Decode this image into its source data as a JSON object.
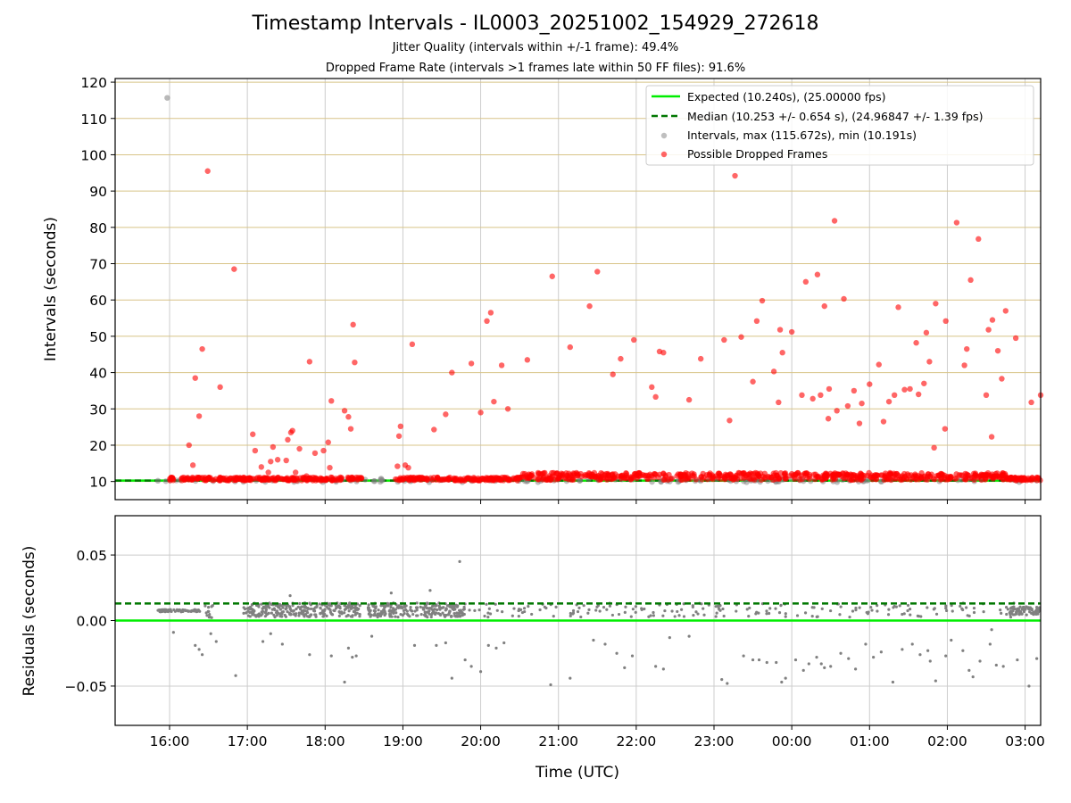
{
  "chart_data": {
    "title": "Timestamp Intervals - IL0003_20251002_154929_272618",
    "subtitles": [
      "Jitter Quality (intervals within +/-1 frame): 49.4%",
      "Dropped Frame Rate (intervals >1 frames late within 50 FF files): 91.6%"
    ],
    "xlabel": "Time (UTC)",
    "x_tick_labels": [
      "16:00",
      "17:00",
      "18:00",
      "19:00",
      "20:00",
      "21:00",
      "22:00",
      "23:00",
      "00:00",
      "01:00",
      "02:00",
      "03:00"
    ],
    "xlim_hours": [
      15.3,
      27.2
    ],
    "colors": {
      "expected": "#00ee00",
      "median": "#007700",
      "intervals": "#808080",
      "dropped": "#ff0000",
      "grid_h_top": "#d8c488",
      "grid": "#cccccc"
    },
    "panels": [
      {
        "id": "intervals",
        "type": "scatter",
        "ylabel": "Intervals (seconds)",
        "ylim": [
          5,
          121
        ],
        "yticks": [
          10,
          20,
          30,
          40,
          50,
          60,
          70,
          80,
          90,
          100,
          110,
          120
        ],
        "ytick_labels": [
          "10",
          "20",
          "30",
          "40",
          "50",
          "60",
          "70",
          "80",
          "90",
          "100",
          "110",
          "120"
        ],
        "expected_value": 10.24,
        "median_value": 10.253,
        "legend": {
          "position": "top-right",
          "entries": [
            "Expected (10.240s), (25.00000 fps)",
            "Median (10.253 +/- 0.654 s), (24.96847 +/- 1.39 fps)",
            "Intervals, max (115.672s), min (10.191s)",
            "Possible Dropped Frames"
          ]
        },
        "baseline_band": {
          "x_start": 15.85,
          "x_end": 27.2,
          "y": 10.25,
          "spread": 0.9
        },
        "gray_points": [
          [
            15.85,
            10.2
          ],
          [
            15.97,
            115.67
          ],
          [
            16.24,
            10.9
          ],
          [
            18.72,
            10.8
          ],
          [
            19.5,
            10.4
          ]
        ],
        "dropped_points": [
          [
            16.25,
            20.0
          ],
          [
            16.3,
            14.5
          ],
          [
            16.33,
            38.5
          ],
          [
            16.38,
            28.0
          ],
          [
            16.42,
            46.5
          ],
          [
            16.49,
            95.5
          ],
          [
            16.65,
            36.0
          ],
          [
            16.83,
            68.5
          ],
          [
            17.07,
            23.0
          ],
          [
            17.1,
            18.5
          ],
          [
            17.18,
            14.0
          ],
          [
            17.27,
            12.5
          ],
          [
            17.3,
            15.5
          ],
          [
            17.33,
            19.5
          ],
          [
            17.39,
            16.0
          ],
          [
            17.5,
            15.8
          ],
          [
            17.52,
            21.5
          ],
          [
            17.56,
            23.5
          ],
          [
            17.58,
            24.0
          ],
          [
            17.62,
            12.5
          ],
          [
            17.67,
            19.0
          ],
          [
            17.76,
            11.5
          ],
          [
            17.8,
            43.0
          ],
          [
            17.87,
            17.8
          ],
          [
            17.98,
            18.5
          ],
          [
            18.04,
            20.8
          ],
          [
            18.06,
            13.8
          ],
          [
            18.08,
            32.2
          ],
          [
            18.25,
            29.5
          ],
          [
            18.3,
            27.8
          ],
          [
            18.33,
            24.5
          ],
          [
            18.36,
            53.2
          ],
          [
            18.38,
            42.8
          ],
          [
            18.93,
            14.2
          ],
          [
            18.95,
            22.5
          ],
          [
            18.97,
            25.2
          ],
          [
            19.03,
            14.5
          ],
          [
            19.07,
            13.8
          ],
          [
            19.12,
            47.8
          ],
          [
            19.4,
            24.3
          ],
          [
            19.55,
            28.5
          ],
          [
            19.63,
            40.0
          ],
          [
            19.88,
            42.5
          ],
          [
            20.0,
            29.0
          ],
          [
            20.08,
            54.2
          ],
          [
            20.13,
            56.5
          ],
          [
            20.17,
            32.0
          ],
          [
            20.27,
            42.0
          ],
          [
            20.35,
            30.0
          ],
          [
            20.6,
            43.5
          ],
          [
            20.92,
            66.5
          ],
          [
            21.15,
            47.0
          ],
          [
            21.4,
            58.3
          ],
          [
            21.5,
            67.8
          ],
          [
            21.7,
            39.5
          ],
          [
            21.8,
            43.8
          ],
          [
            21.97,
            49.0
          ],
          [
            22.2,
            36.0
          ],
          [
            22.25,
            33.3
          ],
          [
            22.3,
            45.8
          ],
          [
            22.35,
            45.5
          ],
          [
            22.68,
            32.5
          ],
          [
            22.83,
            43.8
          ],
          [
            23.13,
            49.0
          ],
          [
            23.2,
            26.8
          ],
          [
            23.27,
            94.2
          ],
          [
            23.35,
            49.8
          ],
          [
            23.5,
            37.5
          ],
          [
            23.55,
            54.2
          ],
          [
            23.62,
            59.8
          ],
          [
            23.77,
            40.3
          ],
          [
            23.83,
            31.8
          ],
          [
            23.85,
            51.8
          ],
          [
            23.88,
            45.5
          ],
          [
            24.0,
            51.2
          ],
          [
            24.13,
            33.8
          ],
          [
            24.18,
            65.0
          ],
          [
            24.27,
            32.8
          ],
          [
            24.33,
            67.0
          ],
          [
            24.37,
            33.8
          ],
          [
            24.42,
            58.3
          ],
          [
            24.47,
            27.3
          ],
          [
            24.48,
            35.5
          ],
          [
            24.55,
            81.8
          ],
          [
            24.58,
            29.5
          ],
          [
            24.67,
            60.3
          ],
          [
            24.72,
            30.8
          ],
          [
            24.8,
            35.0
          ],
          [
            24.87,
            26.0
          ],
          [
            24.9,
            31.5
          ],
          [
            25.0,
            36.8
          ],
          [
            25.12,
            42.2
          ],
          [
            25.18,
            26.5
          ],
          [
            25.25,
            32.0
          ],
          [
            25.32,
            33.8
          ],
          [
            25.37,
            58.0
          ],
          [
            25.45,
            35.3
          ],
          [
            25.52,
            35.5
          ],
          [
            25.6,
            48.2
          ],
          [
            25.63,
            34.0
          ],
          [
            25.7,
            37.0
          ],
          [
            25.73,
            51.0
          ],
          [
            25.77,
            43.0
          ],
          [
            25.83,
            19.3
          ],
          [
            25.85,
            59.0
          ],
          [
            25.97,
            24.5
          ],
          [
            25.98,
            54.2
          ],
          [
            26.12,
            81.3
          ],
          [
            26.22,
            42.0
          ],
          [
            26.25,
            46.5
          ],
          [
            26.3,
            65.5
          ],
          [
            26.4,
            76.8
          ],
          [
            26.5,
            33.8
          ],
          [
            26.53,
            51.8
          ],
          [
            26.57,
            22.3
          ],
          [
            26.58,
            54.5
          ],
          [
            26.65,
            46.0
          ],
          [
            26.7,
            38.3
          ],
          [
            26.75,
            57.0
          ],
          [
            26.88,
            49.5
          ],
          [
            27.08,
            31.8
          ],
          [
            27.2,
            33.8
          ]
        ]
      },
      {
        "id": "residuals",
        "type": "scatter",
        "ylabel": "Residuals (seconds)",
        "ylim": [
          -0.08,
          0.08
        ],
        "yticks": [
          -0.05,
          0.0,
          0.05
        ],
        "ytick_labels": [
          "−0.05",
          "0.00",
          "0.05"
        ],
        "expected_value": 0.0,
        "median_value": 0.013,
        "dense_segments": [
          {
            "x_start": 15.85,
            "x_end": 16.4,
            "center": 0.0075,
            "spread": 0.0015,
            "count": 80
          },
          {
            "x_start": 16.45,
            "x_end": 16.6,
            "center": 0.007,
            "spread": 0.008,
            "count": 12
          },
          {
            "x_start": 16.95,
            "x_end": 18.45,
            "center": 0.008,
            "spread": 0.009,
            "count": 280
          },
          {
            "x_start": 18.55,
            "x_end": 19.8,
            "center": 0.008,
            "spread": 0.009,
            "count": 230
          },
          {
            "x_start": 19.85,
            "x_end": 27.2,
            "center": 0.008,
            "spread": 0.009,
            "count": 200
          },
          {
            "x_start": 26.8,
            "x_end": 27.2,
            "center": 0.0075,
            "spread": 0.005,
            "count": 70
          }
        ],
        "points": [
          [
            19.73,
            0.045
          ],
          [
            19.35,
            0.023
          ],
          [
            17.55,
            0.019
          ],
          [
            18.85,
            0.021
          ],
          [
            16.05,
            -0.009
          ],
          [
            16.33,
            -0.019
          ],
          [
            16.38,
            -0.022
          ],
          [
            16.42,
            -0.026
          ],
          [
            16.53,
            -0.01
          ],
          [
            16.6,
            -0.016
          ],
          [
            16.85,
            -0.042
          ],
          [
            17.2,
            -0.016
          ],
          [
            17.3,
            -0.01
          ],
          [
            17.45,
            -0.018
          ],
          [
            17.8,
            -0.026
          ],
          [
            18.08,
            -0.027
          ],
          [
            18.25,
            -0.047
          ],
          [
            18.3,
            -0.021
          ],
          [
            18.35,
            -0.028
          ],
          [
            18.4,
            -0.027
          ],
          [
            18.6,
            -0.012
          ],
          [
            19.15,
            -0.019
          ],
          [
            19.43,
            -0.019
          ],
          [
            19.55,
            -0.017
          ],
          [
            19.63,
            -0.044
          ],
          [
            19.8,
            -0.03
          ],
          [
            19.88,
            -0.035
          ],
          [
            20.0,
            -0.039
          ],
          [
            20.1,
            -0.019
          ],
          [
            20.2,
            -0.021
          ],
          [
            20.3,
            -0.017
          ],
          [
            20.9,
            -0.049
          ],
          [
            21.15,
            -0.044
          ],
          [
            21.45,
            -0.015
          ],
          [
            21.6,
            -0.018
          ],
          [
            21.75,
            -0.025
          ],
          [
            21.85,
            -0.036
          ],
          [
            21.95,
            -0.027
          ],
          [
            22.25,
            -0.035
          ],
          [
            22.35,
            -0.037
          ],
          [
            22.43,
            -0.013
          ],
          [
            22.68,
            -0.012
          ],
          [
            23.1,
            -0.045
          ],
          [
            23.17,
            -0.048
          ],
          [
            23.38,
            -0.027
          ],
          [
            23.5,
            -0.03
          ],
          [
            23.58,
            -0.03
          ],
          [
            23.68,
            -0.032
          ],
          [
            23.8,
            -0.032
          ],
          [
            23.87,
            -0.047
          ],
          [
            23.92,
            -0.044
          ],
          [
            24.05,
            -0.03
          ],
          [
            24.15,
            -0.038
          ],
          [
            24.22,
            -0.033
          ],
          [
            24.32,
            -0.028
          ],
          [
            24.38,
            -0.033
          ],
          [
            24.42,
            -0.036
          ],
          [
            24.5,
            -0.035
          ],
          [
            24.63,
            -0.025
          ],
          [
            24.73,
            -0.029
          ],
          [
            24.82,
            -0.037
          ],
          [
            24.95,
            -0.018
          ],
          [
            25.05,
            -0.028
          ],
          [
            25.15,
            -0.024
          ],
          [
            25.3,
            -0.047
          ],
          [
            25.42,
            -0.022
          ],
          [
            25.55,
            -0.018
          ],
          [
            25.65,
            -0.026
          ],
          [
            25.75,
            -0.023
          ],
          [
            25.78,
            -0.031
          ],
          [
            25.85,
            -0.046
          ],
          [
            25.98,
            -0.027
          ],
          [
            26.05,
            -0.015
          ],
          [
            26.2,
            -0.023
          ],
          [
            26.28,
            -0.038
          ],
          [
            26.33,
            -0.043
          ],
          [
            26.42,
            -0.031
          ],
          [
            26.55,
            -0.018
          ],
          [
            26.63,
            -0.034
          ],
          [
            26.72,
            -0.035
          ],
          [
            26.9,
            -0.03
          ],
          [
            27.05,
            -0.05
          ],
          [
            27.15,
            -0.029
          ],
          [
            26.57,
            -0.007
          ]
        ]
      }
    ]
  }
}
